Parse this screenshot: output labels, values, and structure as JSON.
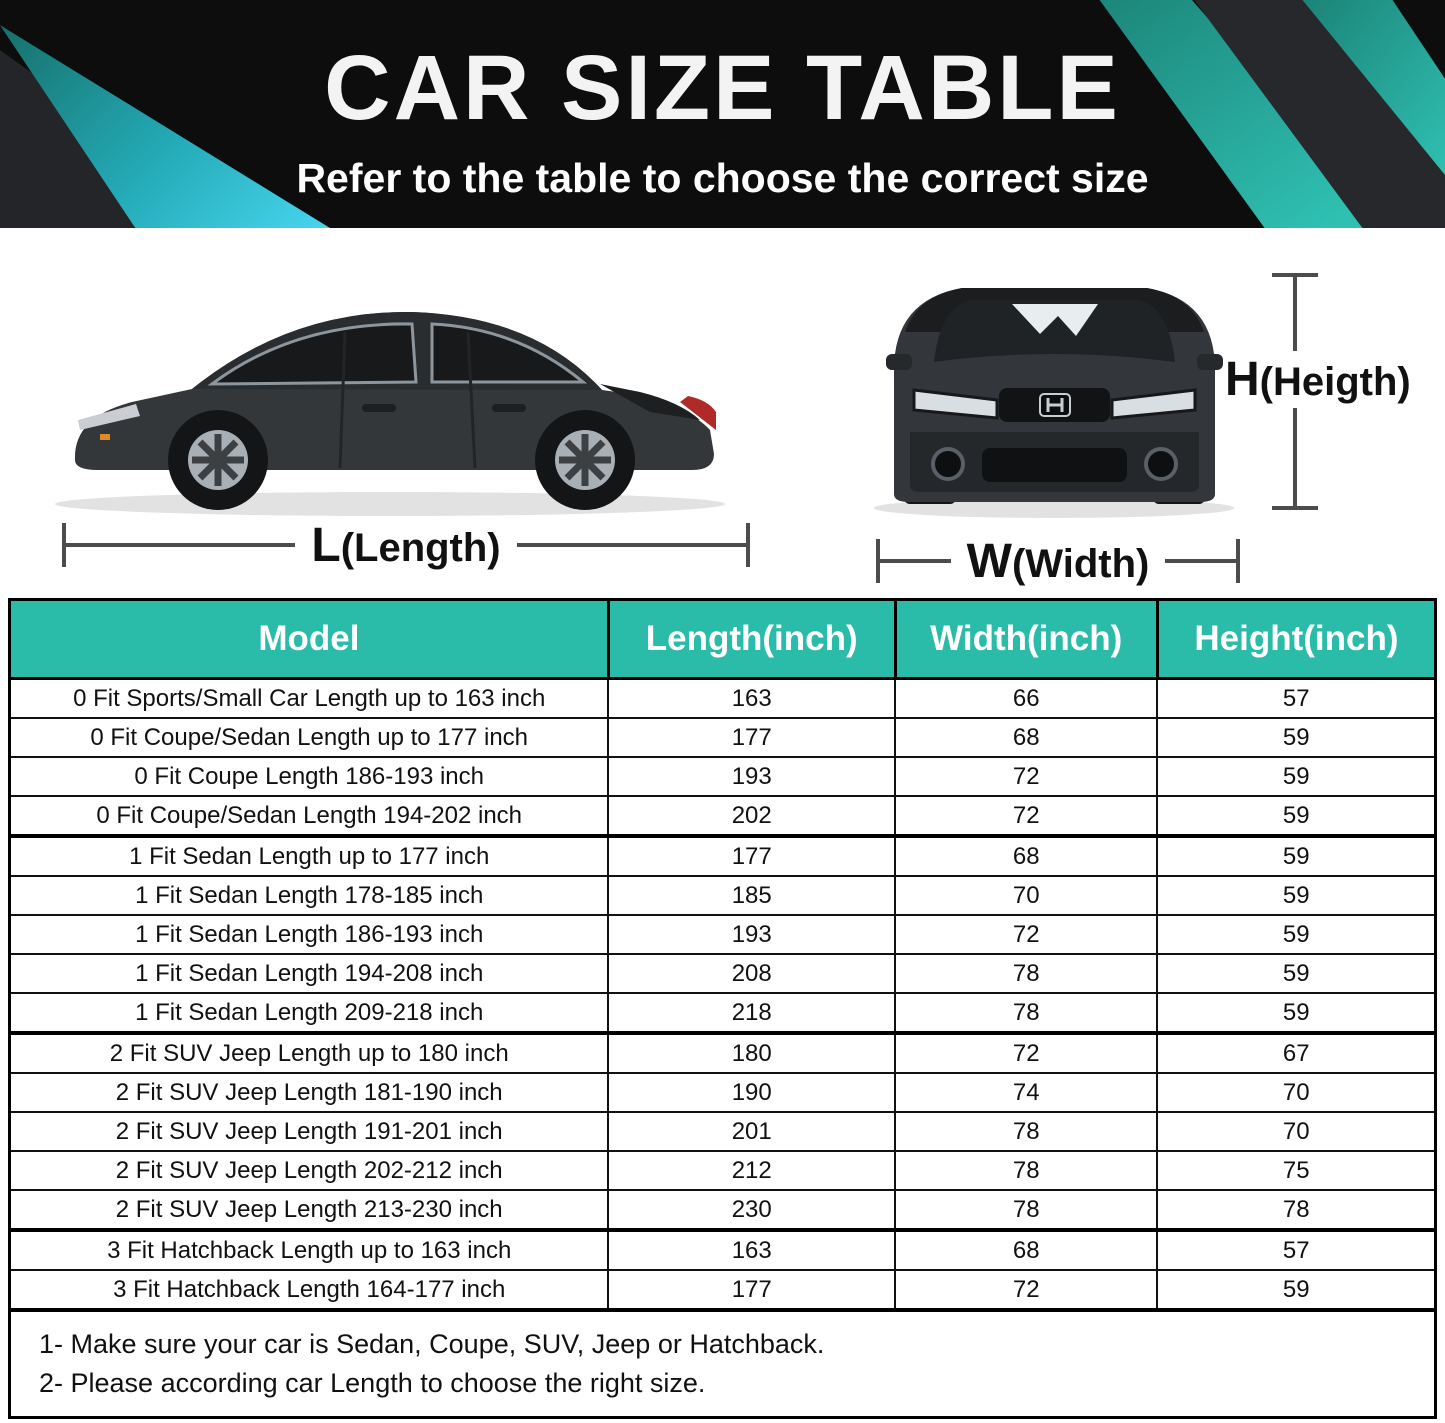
{
  "banner": {
    "title": "CAR SIZE TABLE",
    "subtitle": "Refer to the table to choose the correct size",
    "colors": {
      "background": "#0d0d0e",
      "teal": "#2bbca9",
      "cyan": "#47d5ee"
    }
  },
  "diagram": {
    "length": {
      "letter": "L",
      "word": "(Length)"
    },
    "width": {
      "letter": "W",
      "word": "(Width)"
    },
    "height": {
      "letter": "H",
      "word": "(Heigth)"
    },
    "side_car": "side-view-sedan",
    "front_car": "front-view-car"
  },
  "table": {
    "headers": [
      "Model",
      "Length(inch)",
      "Width(inch)",
      "Height(inch)"
    ],
    "rows": [
      {
        "model": "0 Fit Sports/Small Car Length up to 163 inch",
        "length": "163",
        "width": "66",
        "height": "57"
      },
      {
        "model": "0 Fit Coupe/Sedan Length up to 177 inch",
        "length": "177",
        "width": "68",
        "height": "59"
      },
      {
        "model": "0 Fit Coupe Length 186-193 inch",
        "length": "193",
        "width": "72",
        "height": "59"
      },
      {
        "model": "0 Fit Coupe/Sedan Length 194-202 inch",
        "length": "202",
        "width": "72",
        "height": "59"
      },
      {
        "model": "1 Fit Sedan Length up to 177 inch",
        "length": "177",
        "width": "68",
        "height": "59"
      },
      {
        "model": "1 Fit Sedan Length 178-185 inch",
        "length": "185",
        "width": "70",
        "height": "59"
      },
      {
        "model": "1 Fit Sedan Length 186-193 inch",
        "length": "193",
        "width": "72",
        "height": "59"
      },
      {
        "model": "1 Fit Sedan Length 194-208 inch",
        "length": "208",
        "width": "78",
        "height": "59"
      },
      {
        "model": "1 Fit Sedan Length 209-218 inch",
        "length": "218",
        "width": "78",
        "height": "59"
      },
      {
        "model": "2 Fit SUV Jeep Length up to 180 inch",
        "length": "180",
        "width": "72",
        "height": "67"
      },
      {
        "model": "2 Fit SUV Jeep Length 181-190 inch",
        "length": "190",
        "width": "74",
        "height": "70"
      },
      {
        "model": "2 Fit SUV Jeep Length 191-201 inch",
        "length": "201",
        "width": "78",
        "height": "70"
      },
      {
        "model": "2 Fit SUV Jeep Length 202-212 inch",
        "length": "212",
        "width": "78",
        "height": "75"
      },
      {
        "model": "2 Fit SUV Jeep Length 213-230 inch",
        "length": "230",
        "width": "78",
        "height": "78"
      },
      {
        "model": "3 Fit Hatchback Length up to 163 inch",
        "length": "163",
        "width": "68",
        "height": "57"
      },
      {
        "model": "3 Fit Hatchback Length 164-177 inch",
        "length": "177",
        "width": "72",
        "height": "59"
      }
    ],
    "notes": [
      "1- Make sure your car is Sedan, Coupe, SUV, Jeep or Hatchback.",
      "2- Please according car Length to choose the right size."
    ]
  }
}
